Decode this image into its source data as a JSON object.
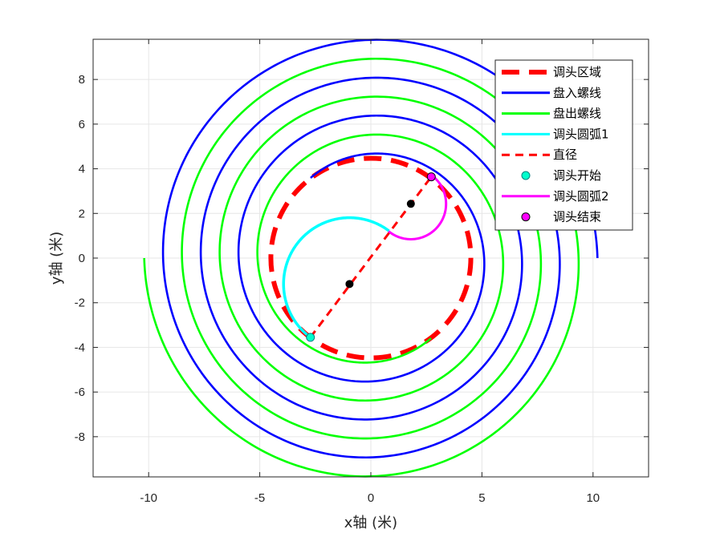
{
  "chart_data": {
    "type": "line",
    "xlabel": "x轴 (米)",
    "ylabel": "y轴 (米)",
    "xlim": [
      -12.5,
      12.5
    ],
    "ylim": [
      -9.8,
      9.8
    ],
    "xticks": [
      -10,
      -5,
      0,
      5,
      10
    ],
    "yticks": [
      -8,
      -6,
      -4,
      -2,
      0,
      2,
      4,
      6,
      8
    ],
    "grid": true,
    "legend_position": "top-right",
    "pitch": 1.7,
    "series": [
      {
        "key": "turn_zone",
        "name": "调头区域",
        "style": "dashed-thick",
        "color": "#ff0000",
        "center": [
          0,
          0
        ],
        "radius": 4.5
      },
      {
        "key": "spiral_in",
        "name": "盘入螺线",
        "style": "solid",
        "color": "#0000ff",
        "start_point": [
          10.2,
          0
        ],
        "end_radius": 4.5,
        "turns": 4
      },
      {
        "key": "spiral_out",
        "name": "盘出螺线",
        "style": "solid",
        "color": "#00ff00",
        "start_point": [
          -10.2,
          0
        ],
        "end_radius": 4.5,
        "turns": 4
      },
      {
        "key": "arc1",
        "name": "调头圆弧1",
        "style": "solid",
        "color": "#00ffff",
        "center": [
          -0.96,
          -1.16
        ],
        "from": [
          -2.72,
          -3.55
        ],
        "to": [
          0.8,
          1.2
        ]
      },
      {
        "key": "diameter",
        "name": "直径",
        "style": "dashed",
        "color": "#ff0000",
        "from": [
          -2.72,
          -3.55
        ],
        "to": [
          2.72,
          3.64
        ]
      },
      {
        "key": "turn_start",
        "name": "调头开始",
        "style": "marker",
        "color": "#00ffcc",
        "point": [
          -2.72,
          -3.55
        ]
      },
      {
        "key": "arc2",
        "name": "调头圆弧2",
        "style": "solid",
        "color": "#ff00ff",
        "center": [
          1.8,
          2.43
        ],
        "from": [
          0.8,
          1.2
        ],
        "to": [
          2.72,
          3.64
        ]
      },
      {
        "key": "turn_end",
        "name": "调头结束",
        "style": "marker",
        "color": "#ff00ff",
        "point": [
          2.72,
          3.64
        ]
      }
    ],
    "centers": [
      [
        -0.96,
        -1.16
      ],
      [
        1.8,
        2.43
      ]
    ]
  }
}
